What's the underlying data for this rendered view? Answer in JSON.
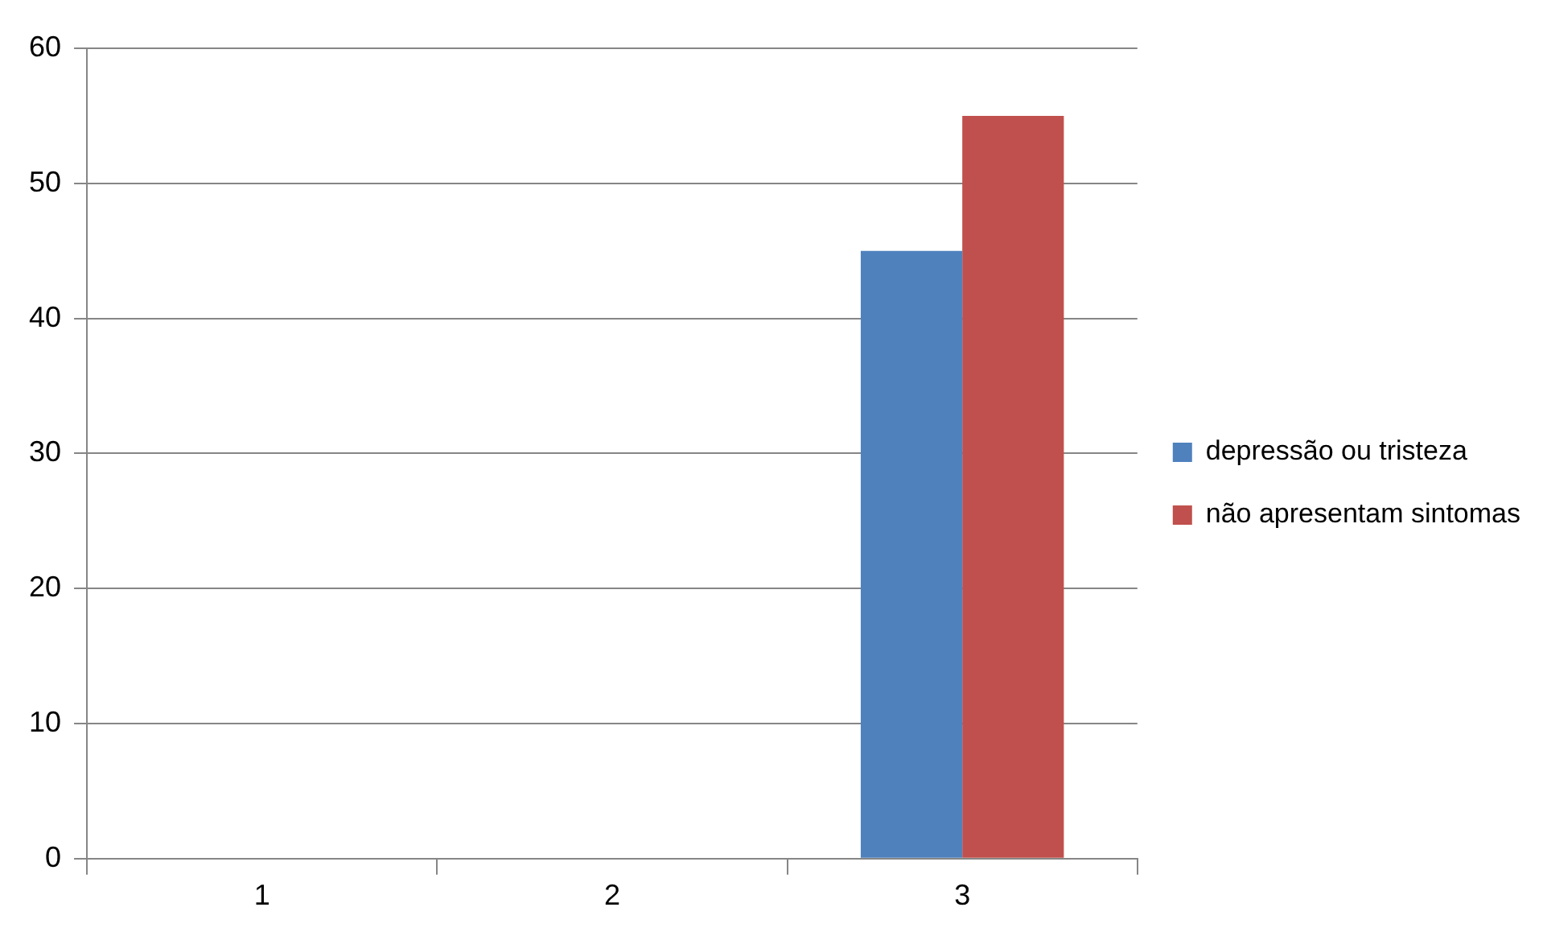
{
  "chart_data": {
    "type": "bar",
    "categories": [
      "1",
      "2",
      "3"
    ],
    "series": [
      {
        "name": "depressão ou tristeza",
        "color": "#4f81bd",
        "values": [
          null,
          null,
          45
        ]
      },
      {
        "name": "não apresentam sintomas",
        "color": "#c0504d",
        "values": [
          null,
          null,
          55
        ]
      }
    ],
    "ylim": [
      0,
      60
    ],
    "yticks": [
      0,
      10,
      20,
      30,
      40,
      50,
      60
    ],
    "grid": "y",
    "legend": "right"
  }
}
